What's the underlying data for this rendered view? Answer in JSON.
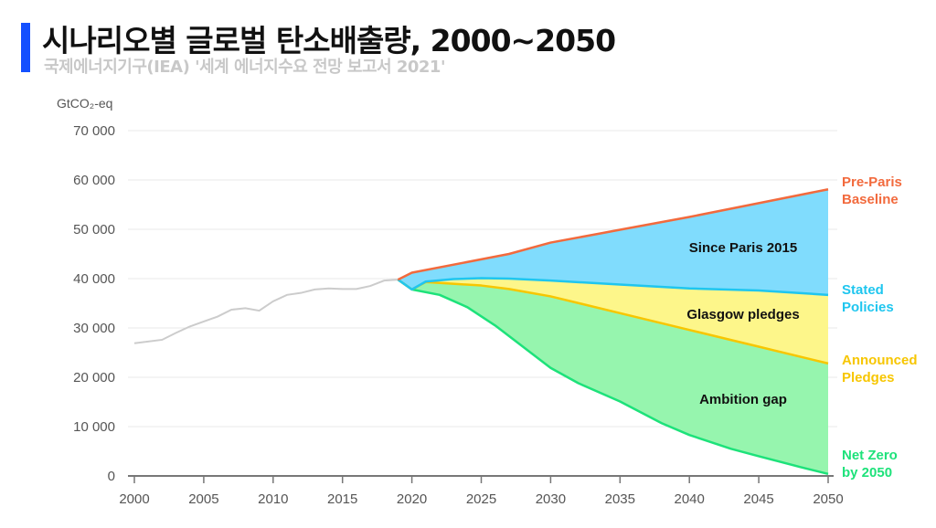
{
  "header": {
    "title": "시나리오별 글로벌 탄소배출량, 2000~2050",
    "subtitle": "국제에너지기구(IEA) '세계 에너지수요 전망 보고서 2021'",
    "accent_color": "#1450ff"
  },
  "chart_data": {
    "type": "area",
    "ylabel": "GtCO2-eq",
    "xlim": [
      2000,
      2050
    ],
    "ylim": [
      0,
      70000
    ],
    "yticks": [
      0,
      10000,
      20000,
      30000,
      40000,
      50000,
      60000,
      70000
    ],
    "ytick_labels": [
      "0",
      "10 000",
      "20 000",
      "30 000",
      "40 000",
      "50 000",
      "60 000",
      "70 000"
    ],
    "xticks": [
      2000,
      2005,
      2010,
      2015,
      2020,
      2025,
      2030,
      2035,
      2040,
      2045,
      2050
    ],
    "xtick_labels": [
      "2000",
      "2005",
      "2010",
      "2015",
      "2020",
      "2025",
      "2030",
      "2035",
      "2040",
      "2045",
      "2050"
    ],
    "grid": true,
    "historical": {
      "color": "#cccccc",
      "x": [
        2000,
        2002,
        2003,
        2004,
        2005,
        2006,
        2007,
        2008,
        2009,
        2010,
        2011,
        2012,
        2013,
        2014,
        2015,
        2016,
        2017,
        2018,
        2019
      ],
      "y": [
        26900,
        27600,
        29000,
        30300,
        31300,
        32300,
        33700,
        34000,
        33500,
        35400,
        36700,
        37100,
        37800,
        38000,
        37900,
        37900,
        38500,
        39600,
        39800
      ]
    },
    "series": [
      {
        "name": "Pre-Paris Baseline",
        "color": "#f26a3d",
        "x": [
          2019,
          2020,
          2027,
          2030,
          2035,
          2040,
          2045,
          2050
        ],
        "y": [
          39800,
          41200,
          45000,
          47300,
          49900,
          52500,
          55300,
          58100
        ]
      },
      {
        "name": "Stated Policies",
        "color": "#1fc6ef",
        "x": [
          2019,
          2020,
          2021,
          2023,
          2025,
          2027,
          2030,
          2035,
          2040,
          2045,
          2050
        ],
        "y": [
          39800,
          37800,
          39400,
          39900,
          40100,
          40000,
          39600,
          38800,
          38000,
          37600,
          36700
        ]
      },
      {
        "name": "Announced Pledges",
        "color": "#f7c600",
        "x": [
          2019,
          2020,
          2021,
          2025,
          2027,
          2030,
          2035,
          2040,
          2045,
          2050
        ],
        "y": [
          39800,
          37800,
          39300,
          38600,
          37900,
          36400,
          33000,
          29600,
          26200,
          22800
        ]
      },
      {
        "name": "Net Zero by 2050",
        "color": "#1de27a",
        "x": [
          2019,
          2020,
          2022,
          2024,
          2026,
          2028,
          2030,
          2032,
          2035,
          2038,
          2040,
          2043,
          2045,
          2048,
          2050
        ],
        "y": [
          39800,
          37800,
          36700,
          34200,
          30500,
          26200,
          21900,
          18800,
          15100,
          10700,
          8300,
          5500,
          4000,
          1800,
          400
        ]
      }
    ],
    "series_labels": [
      {
        "lines": [
          "Pre-Paris",
          "Baseline"
        ],
        "color": "#f26a3d"
      },
      {
        "lines": [
          "Stated",
          "Policies"
        ],
        "color": "#1fc6ef"
      },
      {
        "lines": [
          "Announced",
          "Pledges"
        ],
        "color": "#f7c600"
      },
      {
        "lines": [
          "Net Zero",
          "by 2050"
        ],
        "color": "#1de27a"
      }
    ],
    "bands": [
      {
        "label": "Since Paris 2015",
        "color": "#80dcfd"
      },
      {
        "label": "Glasgow pledges",
        "color": "#fdf68a"
      },
      {
        "label": "Ambition gap",
        "color": "#96f5ae"
      }
    ]
  }
}
